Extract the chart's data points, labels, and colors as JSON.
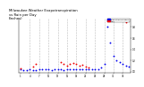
{
  "title": "Milwaukee Weather Evapotranspiration\nvs Rain per Day\n(Inches)",
  "title_fontsize": 2.8,
  "background_color": "#ffffff",
  "grid_color": "#bbbbbb",
  "xlim": [
    -0.5,
    35.5
  ],
  "ylim": [
    -0.02,
    0.95
  ],
  "legend_labels": [
    "Evapotranspiration",
    "Rain"
  ],
  "legend_colors": [
    "#0000ee",
    "#ee0000"
  ],
  "n_points": 36,
  "evap_x": [
    0,
    1,
    2,
    3,
    4,
    5,
    6,
    7,
    8,
    9,
    10,
    11,
    12,
    13,
    14,
    15,
    16,
    17,
    18,
    19,
    20,
    21,
    22,
    23,
    24,
    25,
    26,
    27,
    28,
    29,
    30,
    31,
    32,
    33,
    34,
    35
  ],
  "evap_y": [
    0.04,
    0.03,
    0.03,
    0.04,
    0.03,
    0.03,
    0.04,
    0.05,
    0.04,
    0.04,
    0.03,
    0.04,
    0.04,
    0.04,
    0.03,
    0.04,
    0.05,
    0.04,
    0.04,
    0.05,
    0.04,
    0.04,
    0.05,
    0.04,
    0.05,
    0.05,
    0.07,
    0.13,
    0.8,
    0.52,
    0.28,
    0.2,
    0.17,
    0.14,
    0.11,
    0.09
  ],
  "rain_x": [
    0,
    1,
    2,
    3,
    4,
    5,
    6,
    7,
    8,
    9,
    10,
    11,
    12,
    13,
    14,
    15,
    16,
    17,
    18,
    19,
    20,
    21,
    22,
    23,
    24,
    25,
    26,
    27,
    28,
    29,
    30,
    31,
    32,
    33,
    34,
    35
  ],
  "rain_y": [
    0.06,
    0.0,
    0.0,
    0.0,
    0.09,
    0.13,
    0.0,
    0.0,
    0.0,
    0.0,
    0.0,
    0.0,
    0.0,
    0.17,
    0.14,
    0.1,
    0.13,
    0.15,
    0.13,
    0.11,
    0.12,
    0.09,
    0.07,
    0.0,
    0.0,
    0.0,
    0.0,
    0.0,
    0.0,
    0.0,
    0.0,
    0.0,
    0.0,
    0.0,
    0.88,
    0.0
  ],
  "marker_size": 1.8,
  "yticks": [
    0.0,
    0.2,
    0.4,
    0.6,
    0.8
  ],
  "xtick_positions": [
    0,
    3,
    6,
    9,
    12,
    15,
    18,
    21,
    24,
    27,
    30,
    33
  ],
  "xtick_labels": [
    "1",
    "4",
    "7",
    "10",
    "13",
    "16",
    "19",
    "22",
    "25",
    "28",
    "31",
    "34"
  ],
  "vgrid_positions": [
    3,
    6,
    9,
    12,
    15,
    18,
    21,
    24,
    27,
    30,
    33
  ]
}
